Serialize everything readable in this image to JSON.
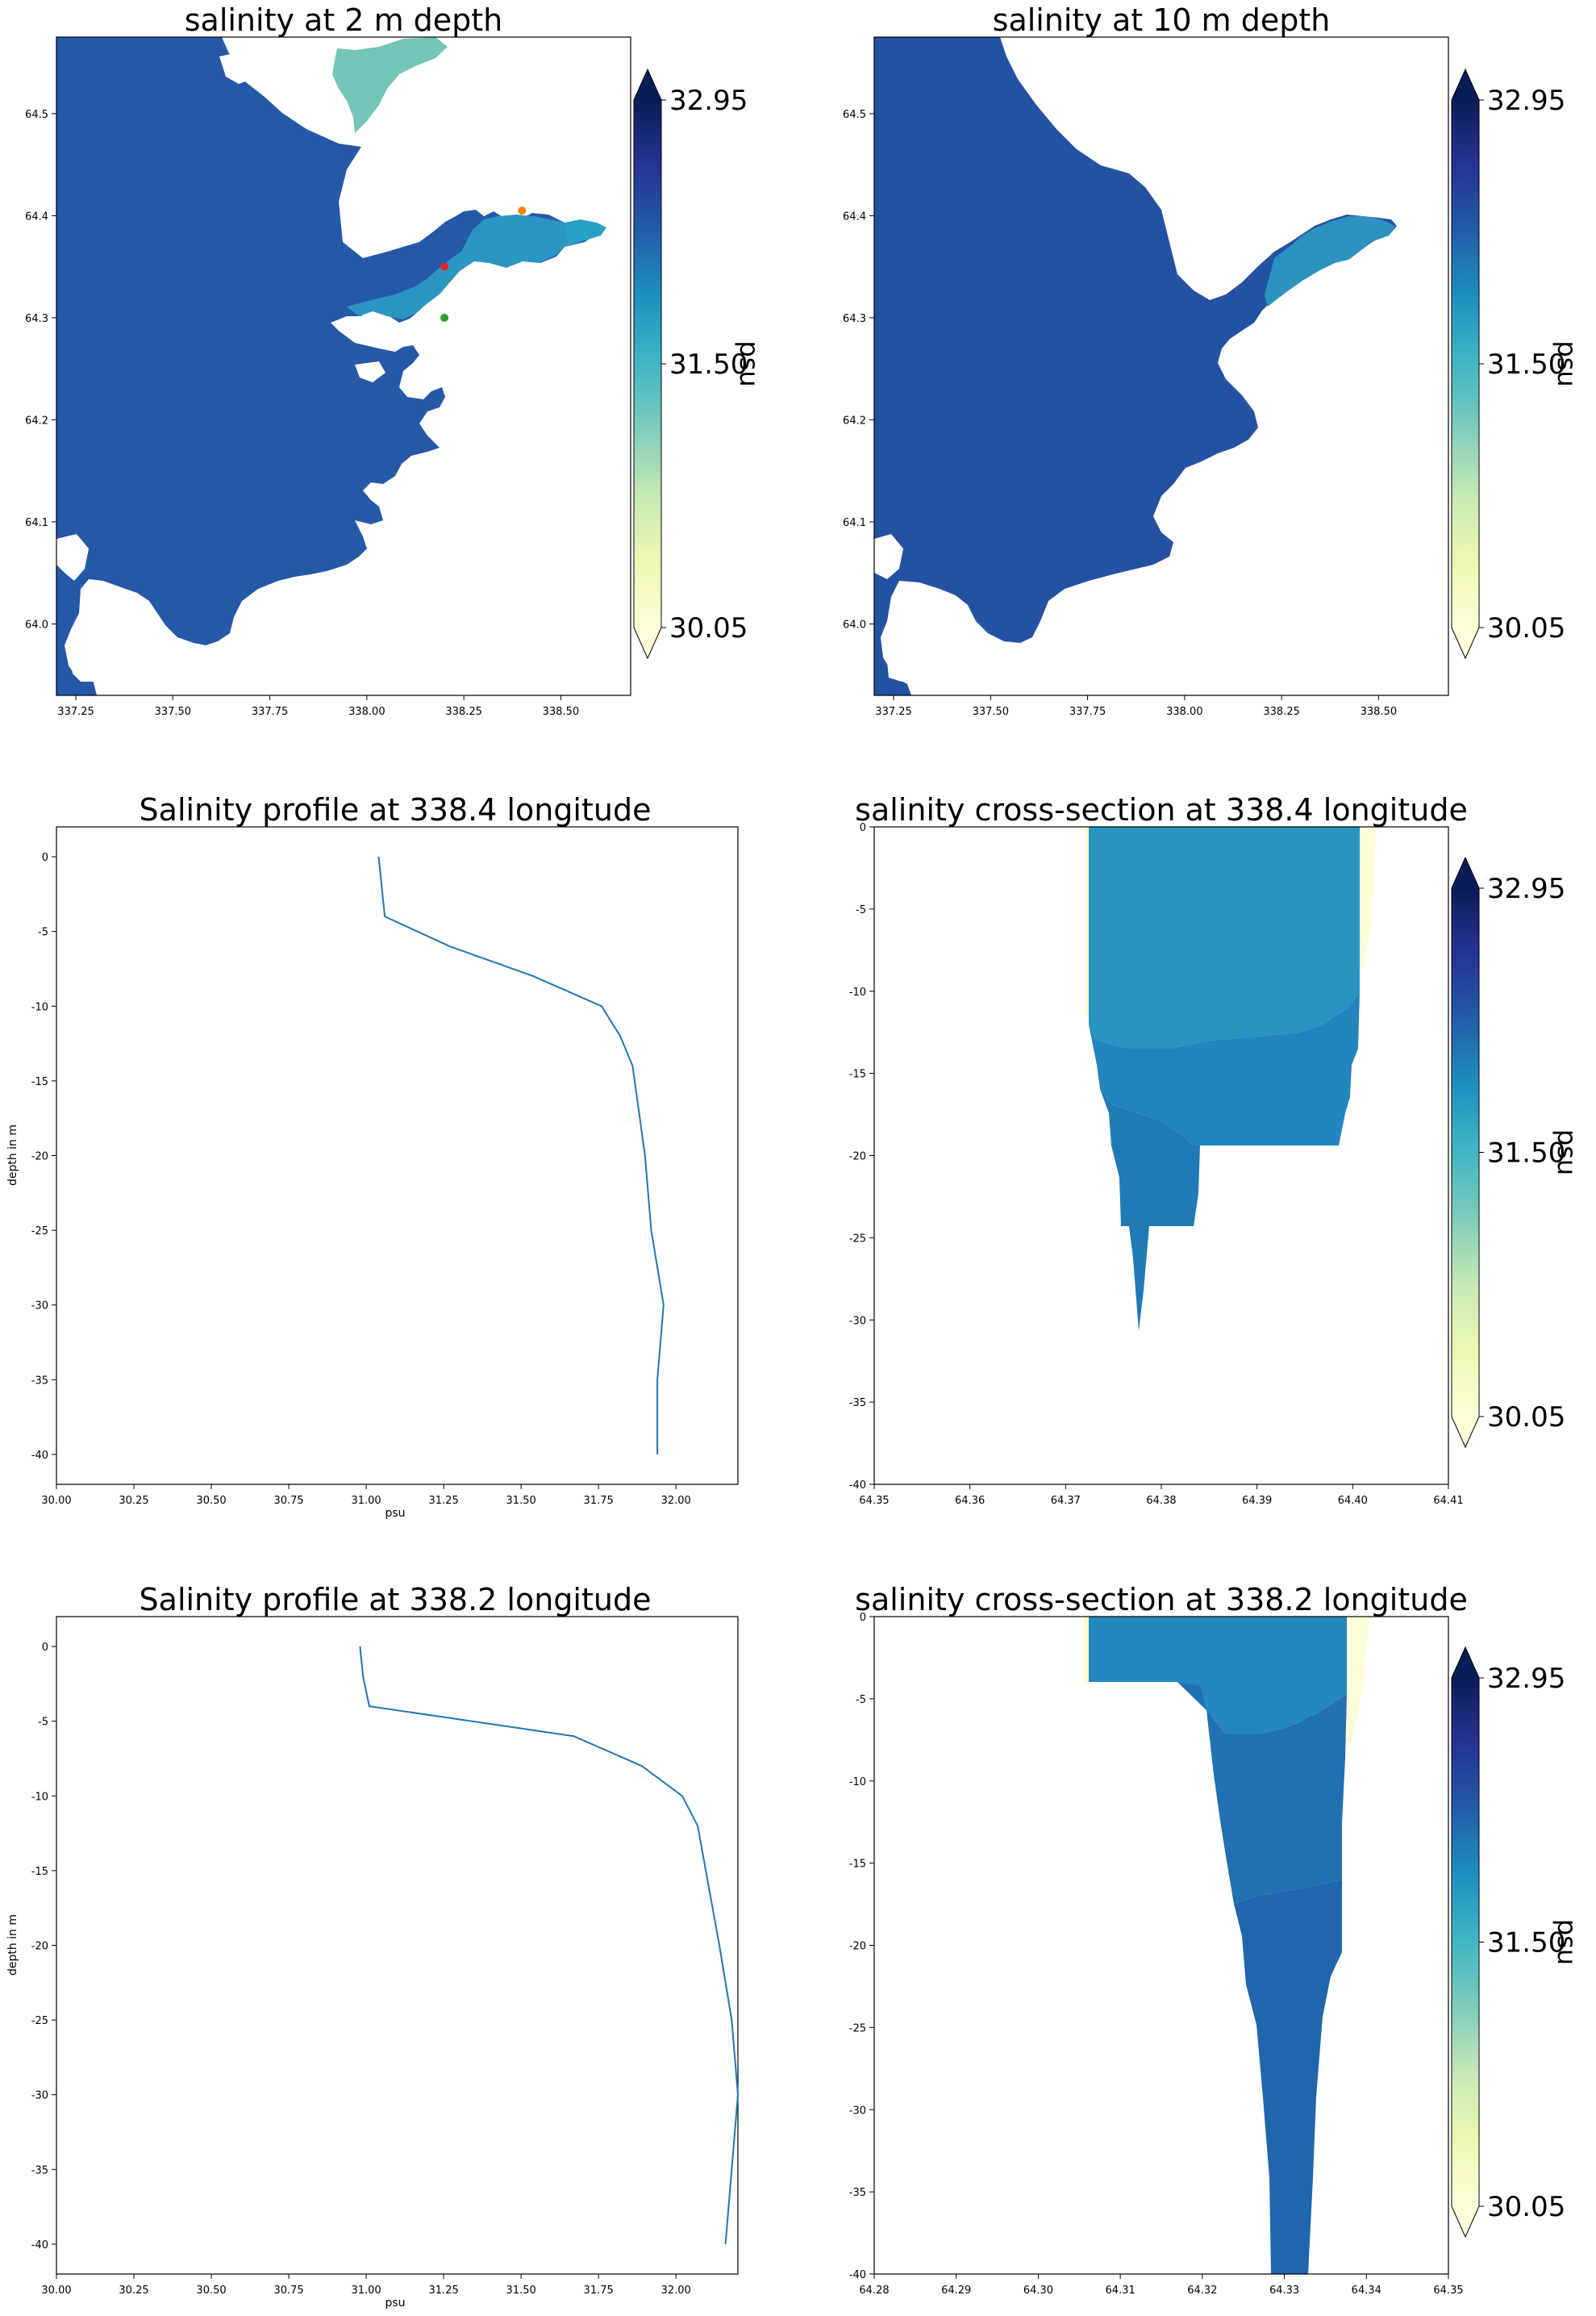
{
  "colorbar": {
    "ticks": [
      "32.95",
      "31.50",
      "30.05"
    ],
    "values": [
      32.95,
      31.5,
      30.05
    ],
    "label": "psu",
    "colors": [
      "#ffffd9",
      "#edf8b1",
      "#c7e9b4",
      "#7fcdbb",
      "#41b6c4",
      "#1d91c0",
      "#225ea8",
      "#253494",
      "#081d58"
    ]
  },
  "maps": [
    {
      "title": "salinity at 2 m depth",
      "xticks": [
        "337.25",
        "337.50",
        "337.75",
        "338.00",
        "338.25",
        "338.50"
      ],
      "yticks": [
        "64.5",
        "64.4",
        "64.3",
        "64.2",
        "64.1",
        "64.0"
      ],
      "markers": [
        {
          "name": "orange-point",
          "lon": 338.4,
          "lat": 64.405,
          "color": "#ff7f0e"
        },
        {
          "name": "red-point",
          "lon": 338.2,
          "lat": 64.35,
          "color": "#d62728"
        },
        {
          "name": "green-point",
          "lon": 338.2,
          "lat": 64.3,
          "color": "#2ca02c"
        }
      ]
    },
    {
      "title": "salinity at 10 m depth",
      "xticks": [
        "337.25",
        "337.50",
        "337.75",
        "338.00",
        "338.25",
        "338.50"
      ],
      "yticks": [
        "64.5",
        "64.4",
        "64.3",
        "64.2",
        "64.1",
        "64.0"
      ]
    }
  ],
  "sections": [
    {
      "title": "salinity cross-section at 338.4 longitude",
      "xticks": [
        "64.35",
        "64.36",
        "64.37",
        "64.38",
        "64.39",
        "64.40",
        "64.41"
      ],
      "yticks": [
        "0",
        "-5",
        "-10",
        "-15",
        "-20",
        "-25",
        "-30",
        "-35",
        "-40"
      ]
    },
    {
      "title": "salinity cross-section at 338.2 longitude",
      "xticks": [
        "64.28",
        "64.29",
        "64.30",
        "64.31",
        "64.32",
        "64.33",
        "64.34",
        "64.35"
      ],
      "yticks": [
        "0",
        "-5",
        "-10",
        "-15",
        "-20",
        "-25",
        "-30",
        "-35",
        "-40"
      ]
    }
  ],
  "chart_data": [
    {
      "type": "line",
      "title": "Salinity profile at 338.4 longitude",
      "xlabel": "psu",
      "ylabel": "depth in m",
      "xlim": [
        30.0,
        32.2
      ],
      "ylim": [
        -42,
        2
      ],
      "xticks": [
        "30.00",
        "30.25",
        "30.50",
        "30.75",
        "31.00",
        "31.25",
        "31.50",
        "31.75",
        "32.00"
      ],
      "yticks": [
        "0",
        "-5",
        "-10",
        "-15",
        "-20",
        "-25",
        "-30",
        "-35",
        "-40"
      ],
      "x": [
        31.04,
        31.05,
        31.06,
        31.27,
        31.54,
        31.76,
        31.82,
        31.86,
        31.9,
        31.92,
        31.96,
        31.94,
        31.94
      ],
      "y": [
        0,
        -2,
        -4,
        -6,
        -8,
        -10,
        -12,
        -14,
        -20,
        -25,
        -30,
        -35,
        -40
      ],
      "color": "#1f77b4"
    },
    {
      "type": "line",
      "title": "Salinity profile at 338.2 longitude",
      "xlabel": "psu",
      "ylabel": "depth in m",
      "xlim": [
        30.0,
        32.2
      ],
      "ylim": [
        -42,
        2
      ],
      "xticks": [
        "30.00",
        "30.25",
        "30.50",
        "30.75",
        "31.00",
        "31.25",
        "31.50",
        "31.75",
        "32.00"
      ],
      "yticks": [
        "0",
        "-5",
        "-10",
        "-15",
        "-20",
        "-25",
        "-30",
        "-35",
        "-40"
      ],
      "x": [
        30.98,
        30.99,
        31.01,
        31.67,
        31.89,
        32.02,
        32.07,
        32.14,
        32.18,
        32.2,
        32.18,
        32.16
      ],
      "y": [
        0,
        -2,
        -4,
        -6,
        -8,
        -10,
        -12,
        -20,
        -25,
        -30,
        -35,
        -40
      ],
      "color": "#1f77b4"
    }
  ]
}
